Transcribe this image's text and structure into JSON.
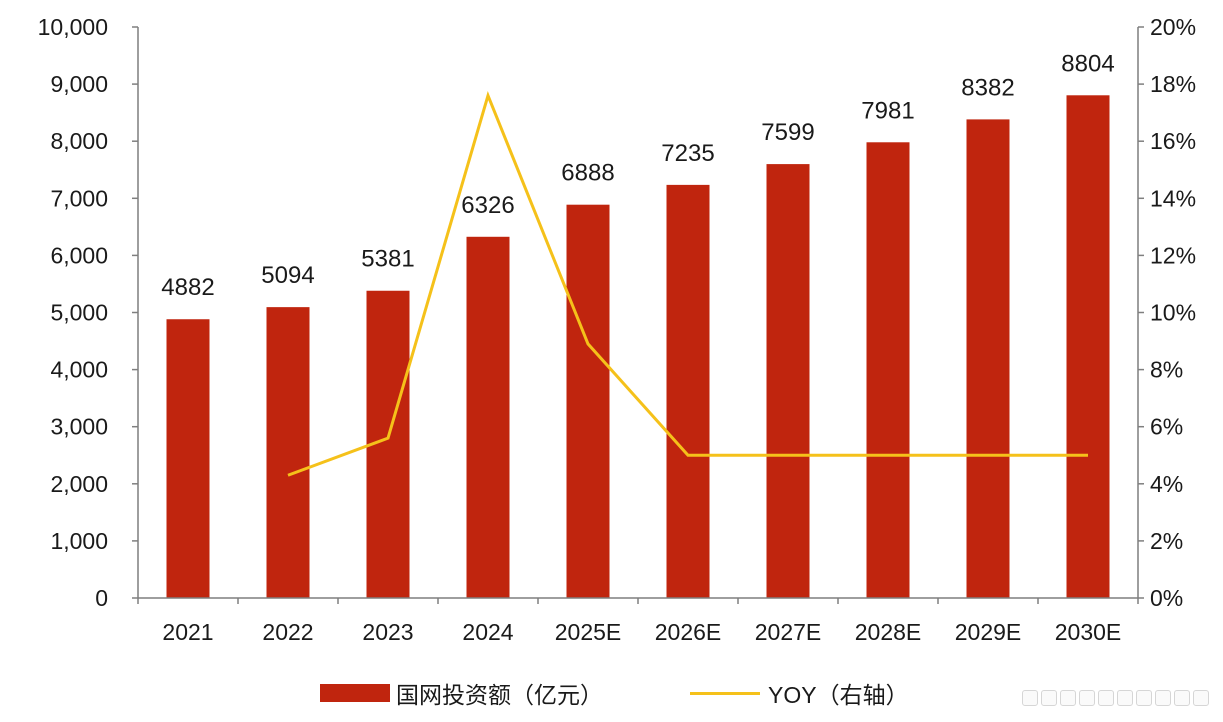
{
  "chart_data": {
    "type": "bar",
    "categories": [
      "2021",
      "2022",
      "2023",
      "2024",
      "2025E",
      "2026E",
      "2027E",
      "2028E",
      "2029E",
      "2030E"
    ],
    "series": [
      {
        "name": "国网投资额（亿元）",
        "type": "bar",
        "axis": "left",
        "color": "#C0250E",
        "values": [
          4882,
          5094,
          5381,
          6326,
          6888,
          7235,
          7599,
          7981,
          8382,
          8804
        ],
        "data_labels": [
          "4882",
          "5094",
          "5381",
          "6326",
          "6888",
          "7235",
          "7599",
          "7981",
          "8382",
          "8804"
        ]
      },
      {
        "name": "YOY（右轴）",
        "type": "line",
        "axis": "right",
        "color": "#F5C11A",
        "values": [
          null,
          4.3,
          5.6,
          17.6,
          8.9,
          5.0,
          5.0,
          5.0,
          5.0,
          5.0
        ]
      }
    ],
    "y_left": {
      "ylim": [
        0,
        10000
      ],
      "ticks": [
        0,
        1000,
        2000,
        3000,
        4000,
        5000,
        6000,
        7000,
        8000,
        9000,
        10000
      ],
      "tick_labels": [
        "0",
        "1,000",
        "2,000",
        "3,000",
        "4,000",
        "5,000",
        "6,000",
        "7,000",
        "8,000",
        "9,000",
        "10,000"
      ]
    },
    "y_right": {
      "ylim": [
        0,
        20
      ],
      "ticks": [
        0,
        2,
        4,
        6,
        8,
        10,
        12,
        14,
        16,
        18,
        20
      ],
      "tick_labels": [
        "0%",
        "2%",
        "4%",
        "6%",
        "8%",
        "10%",
        "12%",
        "14%",
        "16%",
        "18%",
        "20%"
      ]
    },
    "grid": false,
    "legend_position": "bottom"
  }
}
